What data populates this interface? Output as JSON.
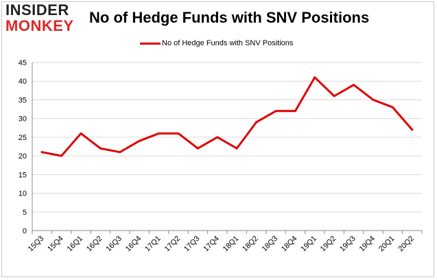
{
  "logo": {
    "line1": "INSIDER",
    "line2": "MONKEY"
  },
  "chart_data": {
    "type": "line",
    "title": "No of Hedge Funds with SNV Positions",
    "xlabel": "",
    "ylabel": "",
    "categories": [
      "15Q3",
      "15Q4",
      "16Q1",
      "16Q2",
      "16Q3",
      "16Q4",
      "17Q1",
      "17Q2",
      "17Q3",
      "17Q4",
      "18Q1",
      "18Q2",
      "18Q3",
      "18Q4",
      "19Q1",
      "19Q2",
      "19Q3",
      "19Q4",
      "20Q1",
      "20Q2"
    ],
    "series": [
      {
        "name": "No of Hedge Funds with SNV Positions",
        "values": [
          21,
          20,
          26,
          22,
          21,
          24,
          26,
          26,
          22,
          25,
          22,
          29,
          32,
          32,
          41,
          36,
          39,
          35,
          33,
          27
        ]
      }
    ],
    "ylim": [
      0,
      45
    ],
    "yticks": [
      0,
      5,
      10,
      15,
      20,
      25,
      30,
      35,
      40,
      45
    ],
    "grid": true,
    "legend": "top-center",
    "line_color": "#e00000",
    "grid_color": "#d9d9d9"
  }
}
